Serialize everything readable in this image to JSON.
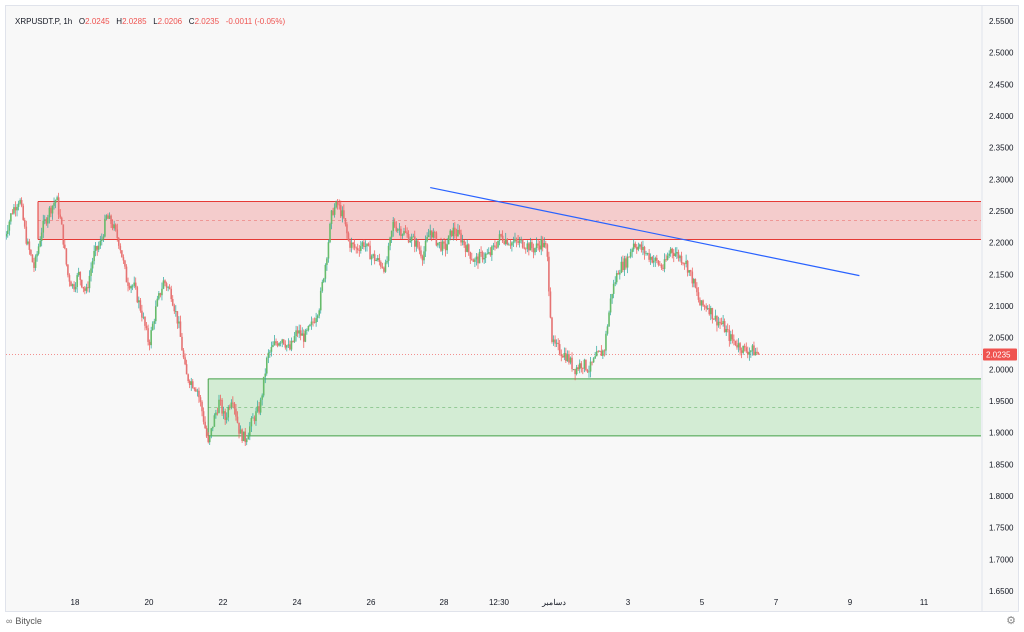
{
  "legend": {
    "symbol": "XRPUSDT.P",
    "interval": "1h",
    "o_label": "O",
    "o_value": "2.0245",
    "h_label": "H",
    "h_value": "2.0285",
    "l_label": "L",
    "l_value": "2.0206",
    "c_label": "C",
    "c_value": "2.0235",
    "change": "-0.0011 (-0.05%)"
  },
  "brand": {
    "name": "Bitycle",
    "logo_icon": "bitycle-logo-icon"
  },
  "colors": {
    "up": "#26a69a",
    "down": "#ef5350",
    "up_body": "#66bb6a",
    "down_body": "#e57373",
    "resistance_fill": "#f4cccc",
    "resistance_border": "#e53935",
    "support_fill": "#d3ecd4",
    "support_border": "#43a047",
    "trendline": "#2962ff",
    "price_label_bg": "#ef5350"
  },
  "chart_data": {
    "type": "candlestick",
    "symbol": "XRPUSDT.P",
    "interval": "1h",
    "current_price": 2.0235,
    "ylim": [
      1.64,
      2.57
    ],
    "y_ticks": [
      "2.5500",
      "2.5000",
      "2.4500",
      "2.4000",
      "2.3500",
      "2.3000",
      "2.2500",
      "2.2000",
      "2.1500",
      "2.1000",
      "2.0500",
      "2.0000",
      "1.9500",
      "1.9000",
      "1.8500",
      "1.8000",
      "1.7500",
      "1.7000",
      "1.6500"
    ],
    "x_ticks": [
      "18",
      "20",
      "22",
      "24",
      "26",
      "28",
      "12:30",
      "دسامبر",
      "3",
      "5",
      "7",
      "9",
      "11"
    ],
    "x_range_days": [
      16,
      29.5
    ],
    "resistance_zone": {
      "low": 2.205,
      "high": 2.265,
      "mid": 2.235,
      "start_day": 17
    },
    "support_zone": {
      "low": 1.895,
      "high": 1.985,
      "mid": 1.94,
      "start_day": 21.6
    },
    "trendline": {
      "p1": {
        "day": 27.6,
        "price": 2.287
      },
      "p2": {
        "day": 39.2,
        "price": 2.148
      }
    },
    "close_series": [
      [
        16.1,
        2.21
      ],
      [
        16.3,
        2.25
      ],
      [
        16.5,
        2.27
      ],
      [
        16.7,
        2.2
      ],
      [
        16.9,
        2.16
      ],
      [
        17.1,
        2.22
      ],
      [
        17.3,
        2.25
      ],
      [
        17.5,
        2.27
      ],
      [
        17.65,
        2.22
      ],
      [
        17.8,
        2.15
      ],
      [
        17.95,
        2.13
      ],
      [
        18.1,
        2.15
      ],
      [
        18.3,
        2.12
      ],
      [
        18.5,
        2.18
      ],
      [
        18.7,
        2.2
      ],
      [
        18.85,
        2.24
      ],
      [
        19.0,
        2.23
      ],
      [
        19.2,
        2.2
      ],
      [
        19.4,
        2.14
      ],
      [
        19.6,
        2.13
      ],
      [
        19.8,
        2.09
      ],
      [
        20.0,
        2.04
      ],
      [
        20.2,
        2.1
      ],
      [
        20.4,
        2.14
      ],
      [
        20.6,
        2.12
      ],
      [
        20.8,
        2.07
      ],
      [
        21.0,
        1.99
      ],
      [
        21.15,
        1.98
      ],
      [
        21.3,
        1.97
      ],
      [
        21.45,
        1.93
      ],
      [
        21.6,
        1.88
      ],
      [
        21.75,
        1.92
      ],
      [
        21.9,
        1.95
      ],
      [
        22.05,
        1.92
      ],
      [
        22.25,
        1.96
      ],
      [
        22.45,
        1.9
      ],
      [
        22.6,
        1.89
      ],
      [
        22.8,
        1.92
      ],
      [
        23.0,
        1.94
      ],
      [
        23.2,
        2.02
      ],
      [
        23.4,
        2.04
      ],
      [
        23.6,
        2.05
      ],
      [
        23.8,
        2.03
      ],
      [
        24.0,
        2.06
      ],
      [
        24.2,
        2.05
      ],
      [
        24.4,
        2.07
      ],
      [
        24.6,
        2.1
      ],
      [
        24.8,
        2.18
      ],
      [
        24.95,
        2.25
      ],
      [
        25.1,
        2.26
      ],
      [
        25.25,
        2.24
      ],
      [
        25.4,
        2.2
      ],
      [
        25.6,
        2.19
      ],
      [
        25.8,
        2.2
      ],
      [
        26.0,
        2.18
      ],
      [
        26.2,
        2.17
      ],
      [
        26.4,
        2.16
      ],
      [
        26.6,
        2.23
      ],
      [
        26.8,
        2.22
      ],
      [
        27.0,
        2.21
      ],
      [
        27.2,
        2.2
      ],
      [
        27.4,
        2.18
      ],
      [
        27.6,
        2.22
      ],
      [
        27.8,
        2.2
      ],
      [
        28.0,
        2.19
      ],
      [
        28.2,
        2.22
      ],
      [
        28.4,
        2.21
      ],
      [
        28.6,
        2.19
      ],
      [
        28.8,
        2.17
      ],
      [
        29.0,
        2.18
      ],
      [
        29.2,
        2.18
      ],
      [
        29.5,
        2.21
      ],
      [
        29.8,
        2.2
      ],
      [
        30.1,
        2.2
      ],
      [
        30.4,
        2.19
      ],
      [
        30.6,
        2.2
      ],
      [
        30.75,
        2.19
      ],
      [
        30.9,
        2.04
      ],
      [
        31.1,
        2.03
      ],
      [
        31.3,
        2.02
      ],
      [
        31.5,
        2.0
      ],
      [
        31.7,
        2.01
      ],
      [
        31.9,
        2.0
      ],
      [
        32.1,
        2.02
      ],
      [
        32.3,
        2.03
      ],
      [
        32.5,
        2.12
      ],
      [
        32.7,
        2.16
      ],
      [
        32.9,
        2.17
      ],
      [
        33.1,
        2.2
      ],
      [
        33.3,
        2.19
      ],
      [
        33.5,
        2.18
      ],
      [
        33.7,
        2.17
      ],
      [
        33.9,
        2.16
      ],
      [
        34.1,
        2.19
      ],
      [
        34.3,
        2.18
      ],
      [
        34.5,
        2.17
      ],
      [
        34.7,
        2.14
      ],
      [
        34.9,
        2.1
      ],
      [
        35.1,
        2.1
      ],
      [
        35.3,
        2.08
      ],
      [
        35.5,
        2.07
      ],
      [
        35.7,
        2.05
      ],
      [
        35.9,
        2.04
      ],
      [
        36.1,
        2.03
      ],
      [
        36.3,
        2.03
      ],
      [
        36.5,
        2.0235
      ]
    ]
  }
}
